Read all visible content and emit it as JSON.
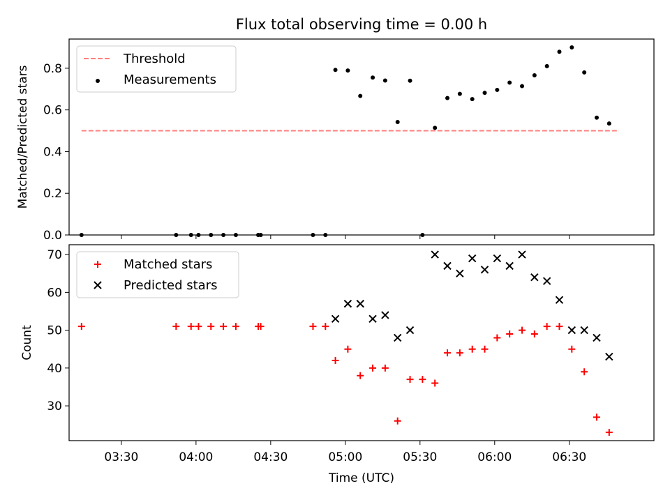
{
  "title": "Flux total observing time = 0.00 h",
  "xlabel": "Time (UTC)",
  "xtick_labels": [
    "03:30",
    "04:00",
    "04:30",
    "05:00",
    "05:30",
    "06:00",
    "06:30"
  ],
  "colors": {
    "threshold": "#ff7f7f",
    "measurements": "#000000",
    "matched": "#ff0000",
    "predicted": "#000000"
  },
  "chart_data": [
    {
      "type": "scatter",
      "ylabel": "Matched/Predicted stars",
      "xlim": [
        "03:09",
        "07:04"
      ],
      "ylim": [
        0,
        0.94
      ],
      "yticks": [
        "0.0",
        "0.2",
        "0.4",
        "0.6",
        "0.8"
      ],
      "legend": {
        "placement": "top-left",
        "entries": [
          "Threshold",
          "Measurements"
        ]
      },
      "series": [
        {
          "name": "Threshold",
          "style": "dashed-line",
          "x": [
            "03:14",
            "06:50"
          ],
          "y": [
            0.5,
            0.5
          ]
        },
        {
          "name": "Measurements",
          "style": "dot",
          "x": [
            "03:14",
            "03:52",
            "03:58",
            "04:01",
            "04:06",
            "04:11",
            "04:16",
            "04:25",
            "04:26",
            "04:47",
            "04:52",
            "04:56",
            "05:01",
            "05:06",
            "05:11",
            "05:16",
            "05:21",
            "05:26",
            "05:31",
            "05:36",
            "05:41",
            "05:46",
            "05:51",
            "05:56",
            "06:01",
            "06:06",
            "06:11",
            "06:16",
            "06:21",
            "06:26",
            "06:31",
            "06:36",
            "06:41",
            "06:46"
          ],
          "y": [
            0.0,
            0.0,
            0.0,
            0.0,
            0.0,
            0.0,
            0.0,
            0.0,
            0.0,
            0.0,
            0.0,
            0.792,
            0.789,
            0.667,
            0.755,
            0.741,
            0.542,
            0.74,
            0.0,
            0.514,
            0.657,
            0.677,
            0.652,
            0.682,
            0.696,
            0.731,
            0.714,
            0.766,
            0.81,
            0.879,
            0.9,
            0.78,
            0.563,
            0.535
          ]
        }
      ]
    },
    {
      "type": "scatter",
      "ylabel": "Count",
      "xlim": [
        "03:09",
        "07:04"
      ],
      "ylim": [
        20.8,
        72.6
      ],
      "yticks": [
        "30",
        "40",
        "50",
        "60",
        "70"
      ],
      "legend": {
        "placement": "top-left",
        "entries": [
          "Matched stars",
          "Predicted stars"
        ]
      },
      "series": [
        {
          "name": "Matched stars",
          "style": "plus",
          "x": [
            "03:14",
            "03:52",
            "03:58",
            "04:01",
            "04:06",
            "04:11",
            "04:16",
            "04:25",
            "04:26",
            "04:47",
            "04:52",
            "04:56",
            "05:01",
            "05:06",
            "05:11",
            "05:16",
            "05:21",
            "05:26",
            "05:31",
            "05:36",
            "05:41",
            "05:46",
            "05:51",
            "05:56",
            "06:01",
            "06:06",
            "06:11",
            "06:16",
            "06:21",
            "06:26",
            "06:31",
            "06:36",
            "06:41",
            "06:46"
          ],
          "y": [
            51,
            51,
            51,
            51,
            51,
            51,
            51,
            51,
            51,
            51,
            51,
            42,
            45,
            38,
            40,
            40,
            26,
            37,
            37,
            36,
            44,
            44,
            45,
            45,
            48,
            49,
            50,
            49,
            51,
            51,
            45,
            39,
            27,
            23
          ]
        },
        {
          "name": "Predicted stars",
          "style": "x",
          "x": [
            "04:56",
            "05:01",
            "05:06",
            "05:11",
            "05:16",
            "05:21",
            "05:26",
            "05:36",
            "05:41",
            "05:46",
            "05:51",
            "05:56",
            "06:01",
            "06:06",
            "06:11",
            "06:16",
            "06:21",
            "06:26",
            "06:31",
            "06:36",
            "06:41",
            "06:46"
          ],
          "y": [
            53,
            57,
            57,
            53,
            54,
            48,
            50,
            70,
            67,
            65,
            69,
            66,
            69,
            67,
            70,
            64,
            63,
            58,
            50,
            50,
            48,
            43
          ]
        }
      ]
    }
  ]
}
